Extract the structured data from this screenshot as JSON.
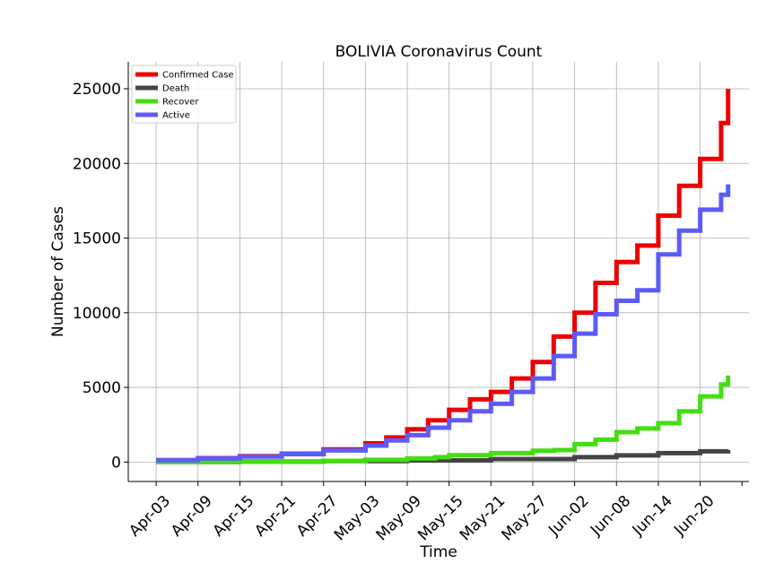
{
  "chart_data": {
    "type": "line",
    "title": "BOLIVIA Coronavirus Count",
    "xlabel": "Time",
    "ylabel": "Number of Cases",
    "x_start": "2020-04-03",
    "x_ticks": [
      "Apr-03",
      "Apr-09",
      "Apr-15",
      "Apr-21",
      "Apr-27",
      "May-03",
      "May-09",
      "May-15",
      "May-21",
      "May-27",
      "Jun-02",
      "Jun-08",
      "Jun-14",
      "Jun-20"
    ],
    "x_tick_days": [
      0,
      6,
      12,
      18,
      24,
      30,
      36,
      42,
      48,
      54,
      60,
      66,
      72,
      78
    ],
    "xlim_days": [
      -4,
      85
    ],
    "y_ticks": [
      0,
      5000,
      10000,
      15000,
      20000,
      25000
    ],
    "ylim": [
      -1300,
      26800
    ],
    "grid": true,
    "legend_position": "top-left",
    "series": [
      {
        "name": "Confirmed Case",
        "color": "#ee0000",
        "days": [
          0,
          6,
          12,
          18,
          24,
          30,
          33,
          36,
          39,
          42,
          45,
          48,
          51,
          54,
          57,
          60,
          63,
          66,
          69,
          72,
          75,
          78,
          81,
          82
        ],
        "values": [
          130,
          260,
          400,
          560,
          850,
          1250,
          1650,
          2200,
          2800,
          3500,
          4200,
          4700,
          5600,
          6700,
          8400,
          10000,
          12000,
          13400,
          14500,
          16500,
          18500,
          20300,
          22700,
          25000
        ]
      },
      {
        "name": "Death",
        "color": "#444444",
        "days": [
          0,
          12,
          24,
          36,
          48,
          60,
          66,
          72,
          78,
          82
        ],
        "values": [
          10,
          30,
          60,
          110,
          200,
          330,
          450,
          600,
          720,
          820
        ]
      },
      {
        "name": "Recover",
        "color": "#44dd11",
        "days": [
          0,
          12,
          24,
          30,
          36,
          40,
          42,
          48,
          54,
          57,
          60,
          63,
          66,
          69,
          72,
          75,
          78,
          81,
          82
        ],
        "values": [
          5,
          20,
          80,
          150,
          250,
          330,
          460,
          600,
          760,
          800,
          1200,
          1500,
          2000,
          2250,
          2600,
          3400,
          4400,
          5200,
          5800
        ]
      },
      {
        "name": "Active",
        "color": "#5d5bf8",
        "days": [
          0,
          6,
          12,
          18,
          24,
          30,
          33,
          36,
          39,
          42,
          45,
          48,
          51,
          54,
          57,
          60,
          63,
          66,
          69,
          72,
          75,
          78,
          81,
          82
        ],
        "values": [
          120,
          240,
          370,
          530,
          780,
          1100,
          1450,
          1800,
          2300,
          2800,
          3400,
          3900,
          4700,
          5600,
          7100,
          8600,
          9900,
          10800,
          11500,
          13900,
          15500,
          16900,
          17900,
          18600
        ]
      }
    ]
  }
}
